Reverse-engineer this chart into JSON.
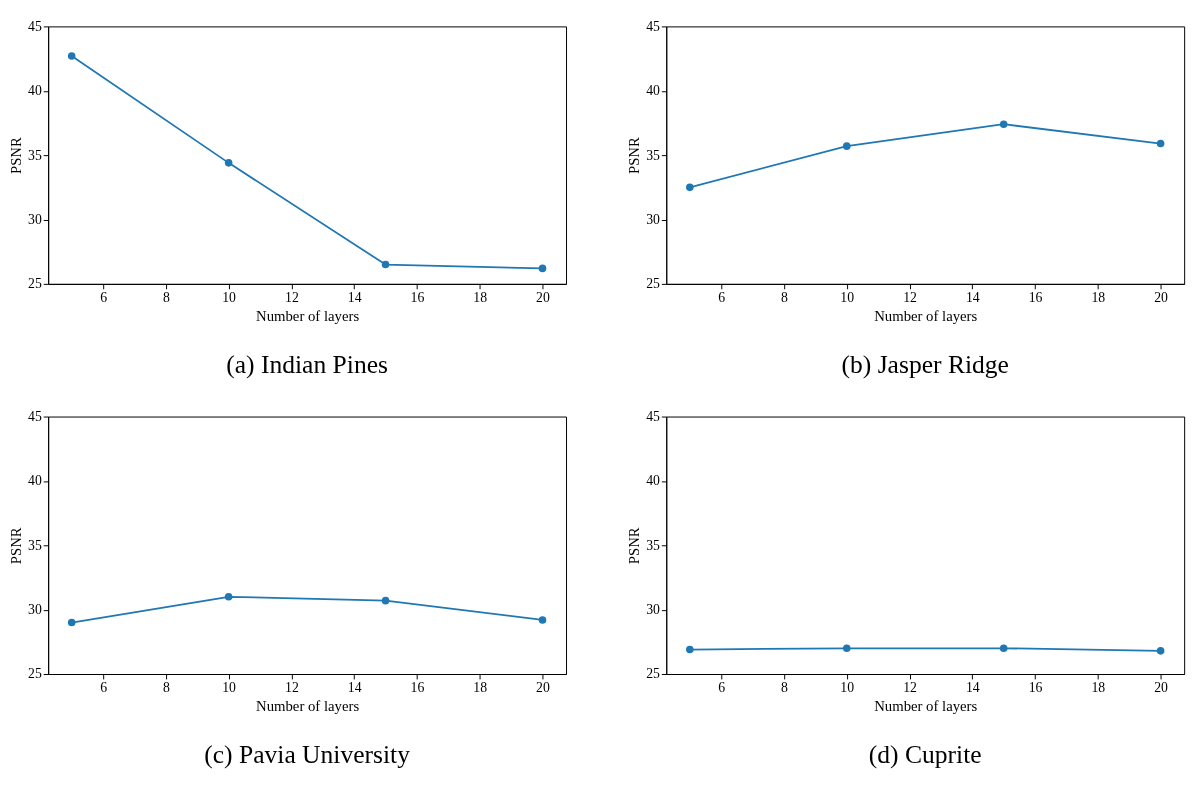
{
  "chart_data": [
    {
      "type": "line",
      "title": "(a) Indian Pines",
      "xlabel": "Number of layers",
      "ylabel": "PSNR",
      "x": [
        5,
        10,
        15,
        20
      ],
      "series": [
        {
          "color": "#1f77b4",
          "values": [
            42.7,
            34.4,
            26.5,
            26.2
          ]
        }
      ],
      "xlim": [
        4.25,
        20.75
      ],
      "xticks": [
        6,
        8,
        10,
        12,
        14,
        16,
        18,
        20
      ],
      "ylim": [
        25,
        45
      ],
      "yticks": [
        25,
        30,
        35,
        40,
        45
      ],
      "marker": "circle",
      "grid": false
    },
    {
      "type": "line",
      "title": "(b) Jasper Ridge",
      "xlabel": "Number of layers",
      "ylabel": "PSNR",
      "x": [
        5,
        10,
        15,
        20
      ],
      "series": [
        {
          "color": "#1f77b4",
          "values": [
            32.5,
            35.7,
            37.4,
            35.9
          ]
        }
      ],
      "xlim": [
        4.25,
        20.75
      ],
      "xticks": [
        6,
        8,
        10,
        12,
        14,
        16,
        18,
        20
      ],
      "ylim": [
        25,
        45
      ],
      "yticks": [
        25,
        30,
        35,
        40,
        45
      ],
      "marker": "circle",
      "grid": false
    },
    {
      "type": "line",
      "title": "(c) Pavia University",
      "xlabel": "Number of layers",
      "ylabel": "PSNR",
      "x": [
        5,
        10,
        15,
        20
      ],
      "series": [
        {
          "color": "#1f77b4",
          "values": [
            29.0,
            31.0,
            30.7,
            29.2
          ]
        }
      ],
      "xlim": [
        4.25,
        20.75
      ],
      "xticks": [
        6,
        8,
        10,
        12,
        14,
        16,
        18,
        20
      ],
      "ylim": [
        25,
        45
      ],
      "yticks": [
        25,
        30,
        35,
        40,
        45
      ],
      "marker": "circle",
      "grid": false
    },
    {
      "type": "line",
      "title": "(d) Cuprite",
      "xlabel": "Number of layers",
      "ylabel": "PSNR",
      "x": [
        5,
        10,
        15,
        20
      ],
      "series": [
        {
          "color": "#1f77b4",
          "values": [
            26.9,
            27.0,
            27.0,
            26.8
          ]
        }
      ],
      "xlim": [
        4.25,
        20.75
      ],
      "xticks": [
        6,
        8,
        10,
        12,
        14,
        16,
        18,
        20
      ],
      "ylim": [
        25,
        45
      ],
      "yticks": [
        25,
        30,
        35,
        40,
        45
      ],
      "marker": "circle",
      "grid": false
    }
  ]
}
